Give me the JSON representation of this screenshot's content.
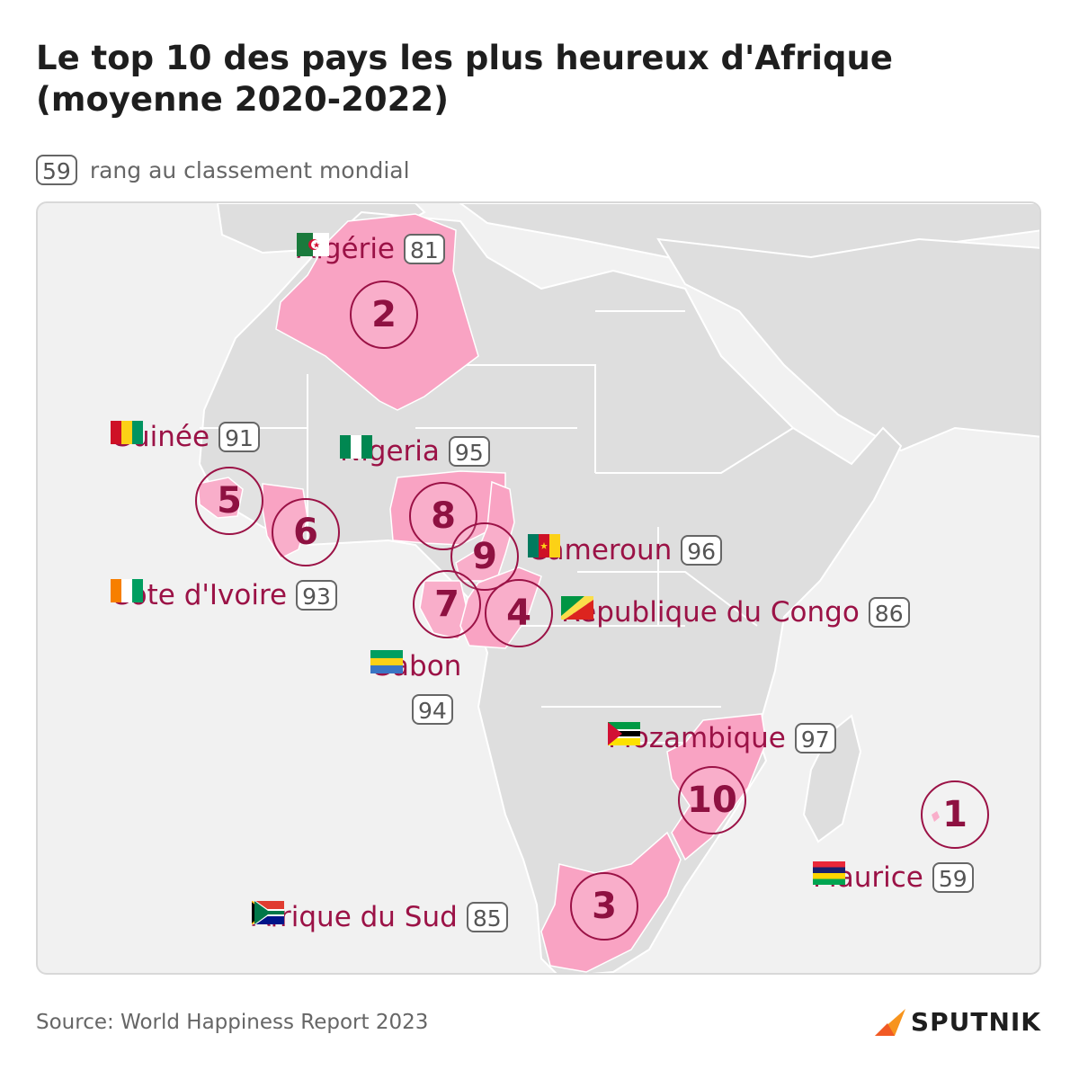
{
  "title": "Le top 10 des pays les plus heureux d'Afrique (moyenne 2020-2022)",
  "legend": {
    "sample_rank": "59",
    "text": "rang au classement mondial"
  },
  "countries": [
    {
      "id": "algerie",
      "name": "Algérie",
      "position": "2",
      "world_rank": "81",
      "flag": "algeria-flag-icon"
    },
    {
      "id": "guinee",
      "name": "Guinée",
      "position": "5",
      "world_rank": "91",
      "flag": "guinea-flag-icon"
    },
    {
      "id": "nigeria",
      "name": "Nigeria",
      "position": "8",
      "world_rank": "95",
      "flag": "nigeria-flag-icon"
    },
    {
      "id": "cameroun",
      "name": "Cameroun",
      "position": "9",
      "world_rank": "96",
      "flag": "cameroon-flag-icon"
    },
    {
      "id": "cote-ivoire",
      "name": "Côte d'Ivoire",
      "position": "6",
      "world_rank": "93",
      "flag": "ivory-coast-flag-icon"
    },
    {
      "id": "congo",
      "name": "République du Congo",
      "position": "4",
      "world_rank": "86",
      "flag": "congo-flag-icon"
    },
    {
      "id": "gabon",
      "name": "Gabon",
      "position": "7",
      "world_rank": "94",
      "flag": "gabon-flag-icon"
    },
    {
      "id": "mozambique",
      "name": "Mozambique",
      "position": "10",
      "world_rank": "97",
      "flag": "mozambique-flag-icon"
    },
    {
      "id": "maurice",
      "name": "Maurice",
      "position": "1",
      "world_rank": "59",
      "flag": "mauritius-flag-icon"
    },
    {
      "id": "afrique-sud",
      "name": "Afrique du Sud",
      "position": "3",
      "world_rank": "85",
      "flag": "south-africa-flag-icon"
    }
  ],
  "colors": {
    "highlight": "#f9a3c3",
    "land": "#dedede",
    "sea": "#f1f1f1",
    "accent": "#9b1246"
  },
  "source": "Source: World Happiness Report 2023",
  "brand": "SPUTNIK"
}
